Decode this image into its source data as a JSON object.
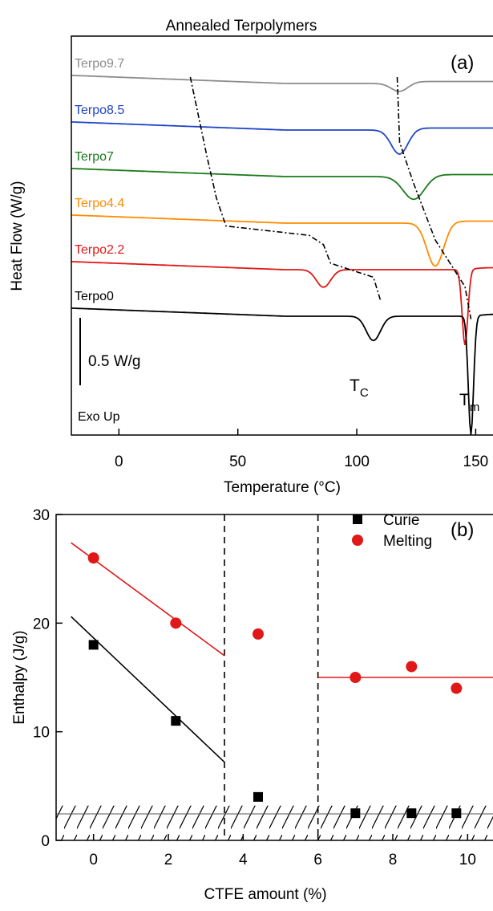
{
  "chart_data": [
    {
      "type": "line",
      "title": "Annealed Terpolymers",
      "panel_label": "(a)",
      "xlabel": "Temperature (°C)",
      "ylabel": "Heat Flow (W/g)",
      "xlim": [
        -20,
        162
      ],
      "x_ticks": [
        0,
        50,
        100,
        150
      ],
      "y_ticks_shown": false,
      "scale_bar_label": "0.5 W/g",
      "exo_label": "Exo Up",
      "tc_label": "T",
      "tc_sub": "C",
      "tm_label": "T",
      "tm_sub": "m",
      "series": [
        {
          "name": "Terpo9.7",
          "color": "#8c8c8c",
          "offset": 0,
          "dips": [
            [
              118,
              0.06,
              3.5
            ]
          ]
        },
        {
          "name": "Terpo8.5",
          "color": "#1f45c8",
          "offset": 1,
          "dips": [
            [
              118,
              0.18,
              3.5
            ]
          ]
        },
        {
          "name": "Terpo7",
          "color": "#1a7a1a",
          "offset": 2,
          "dips": [
            [
              124,
              0.17,
              4.5
            ]
          ]
        },
        {
          "name": "Terpo4.4",
          "color": "#ff8c00",
          "offset": 3,
          "dips": [
            [
              133,
              0.32,
              3.5
            ]
          ]
        },
        {
          "name": "Terpo2.2",
          "color": "#e01818",
          "offset": 4,
          "dips": [
            [
              86,
              0.13,
              3.0
            ],
            [
              145.5,
              0.56,
              1.2
            ]
          ]
        },
        {
          "name": "Terpo0",
          "color": "#000000",
          "offset": 5,
          "dips": [
            [
              107,
              0.18,
              3.0
            ],
            [
              148,
              0.88,
              1.1
            ]
          ]
        }
      ],
      "tc_trend": [
        [
          30,
          0
        ],
        [
          37,
          1.7
        ],
        [
          41,
          2.6
        ],
        [
          45,
          3.2
        ],
        [
          80,
          3.4
        ],
        [
          86,
          3.6
        ],
        [
          89,
          4.0
        ],
        [
          107,
          4.3
        ],
        [
          110,
          4.8
        ]
      ],
      "tm_trend": [
        [
          117,
          0
        ],
        [
          118,
          1.4
        ],
        [
          124,
          2.3
        ],
        [
          133,
          3.5
        ],
        [
          145.5,
          4.5
        ],
        [
          148,
          5.2
        ]
      ]
    },
    {
      "type": "scatter",
      "panel_label": "(b)",
      "xlabel": "CTFE amount (%)",
      "ylabel": "Enthalpy (J/g)",
      "xlim": [
        -1.0,
        11.0
      ],
      "ylim": [
        0,
        30
      ],
      "x_ticks": [
        0,
        2,
        4,
        6,
        8,
        10
      ],
      "y_ticks": [
        0,
        10,
        20,
        30
      ],
      "series": [
        {
          "name": "Curie",
          "marker": "square",
          "color": "#000000",
          "x": [
            0,
            2.2,
            4.4,
            7.0,
            8.5,
            9.7
          ],
          "y": [
            18,
            11,
            4,
            2.5,
            2.5,
            2.5
          ]
        },
        {
          "name": "Melting",
          "marker": "circle",
          "color": "#e01818",
          "x": [
            0,
            2.2,
            4.4,
            7.0,
            8.5,
            9.7
          ],
          "y": [
            26,
            20,
            19,
            15,
            16,
            14
          ]
        }
      ],
      "fit_lines": [
        {
          "series": "Curie",
          "color": "#000000",
          "x": [
            -0.6,
            3.5
          ],
          "y": [
            20.6,
            7.2
          ]
        },
        {
          "series": "Melting",
          "color": "#e01818",
          "x": [
            -0.6,
            3.5
          ],
          "y": [
            27.4,
            17.0
          ]
        },
        {
          "series": "Melting",
          "color": "#e01818",
          "x": [
            6.0,
            11.0
          ],
          "y": [
            15.0,
            15.0
          ]
        }
      ],
      "vlines": [
        3.5,
        6.0
      ],
      "hatched_band": [
        0,
        3.2
      ]
    }
  ]
}
